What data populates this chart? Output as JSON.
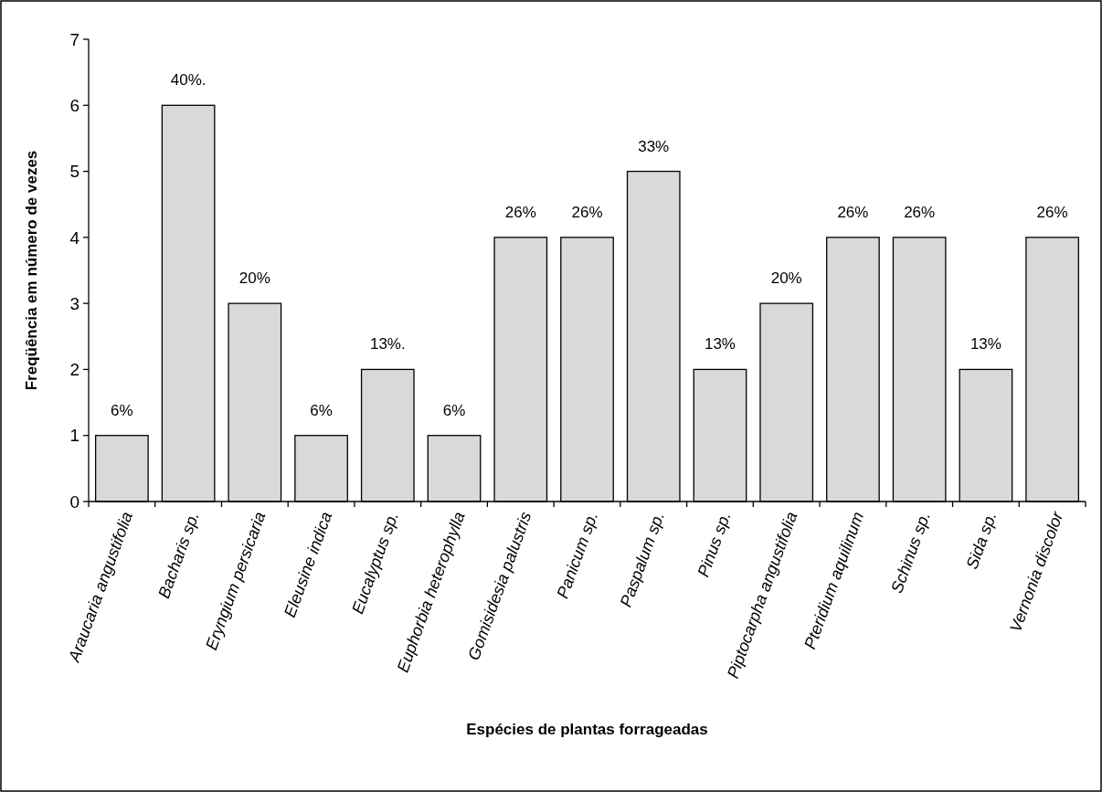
{
  "chart_data": {
    "type": "bar",
    "xlabel": "Espécies de plantas forrageadas",
    "ylabel": "Freqüência em número de vezes",
    "categories": [
      "Araucaria angustifolia",
      "Bacharis sp.",
      "Eryngium persicaria",
      "Eleusine indica",
      "Eucalyptus sp.",
      "Euphorbia heterophylla",
      "Gomisidesia palustris",
      "Panicum sp.",
      "Paspalum sp.",
      "Pinus sp.",
      "Piptocarpha angustifolia",
      "Pteridium aquilinum",
      "Schinus sp.",
      "Sida sp.",
      "Vernonia discolor"
    ],
    "values": [
      1,
      6,
      3,
      1,
      2,
      1,
      4,
      4,
      5,
      2,
      3,
      4,
      4,
      2,
      4
    ],
    "annotations": [
      {
        "text": "6%",
        "x": "Araucaria angustifolia",
        "y": 1
      },
      {
        "text": "40%.",
        "x": "Bacharis sp.",
        "y": 6
      },
      {
        "text": "20%",
        "x": "Eryngium persicaria",
        "y": 3
      },
      {
        "text": "6%",
        "x": "Eleusine indica",
        "y": 1
      },
      {
        "text": "13%.",
        "x": "Eucalyptus sp.",
        "y": 2
      },
      {
        "text": "6%",
        "x": "Euphorbia heterophylla",
        "y": 1
      },
      {
        "text": "26%",
        "x": "Gomisidesia palustris",
        "y": 4
      },
      {
        "text": "26%",
        "x": "Panicum sp.",
        "y": 4
      },
      {
        "text": "33%",
        "x": "Paspalum sp.",
        "y": 5
      },
      {
        "text": "13%",
        "x": "Pinus sp.",
        "y": 2
      },
      {
        "text": "20%",
        "x": "Piptocarpha angustifolia",
        "y": 3
      },
      {
        "text": "26%",
        "x": "Pteridium aquilinum",
        "y": 4
      },
      {
        "text": "26%",
        "x": "Schinus sp.",
        "y": 4
      },
      {
        "text": "13%",
        "x": "Sida sp.",
        "y": 2
      },
      {
        "text": "26%",
        "x": "Vernonia discolor",
        "y": 4
      }
    ],
    "color": "#d9d9d9",
    "ylim": [
      0,
      7
    ],
    "yticks": [
      0,
      1,
      2,
      3,
      4,
      5,
      6,
      7
    ],
    "grid": false
  }
}
